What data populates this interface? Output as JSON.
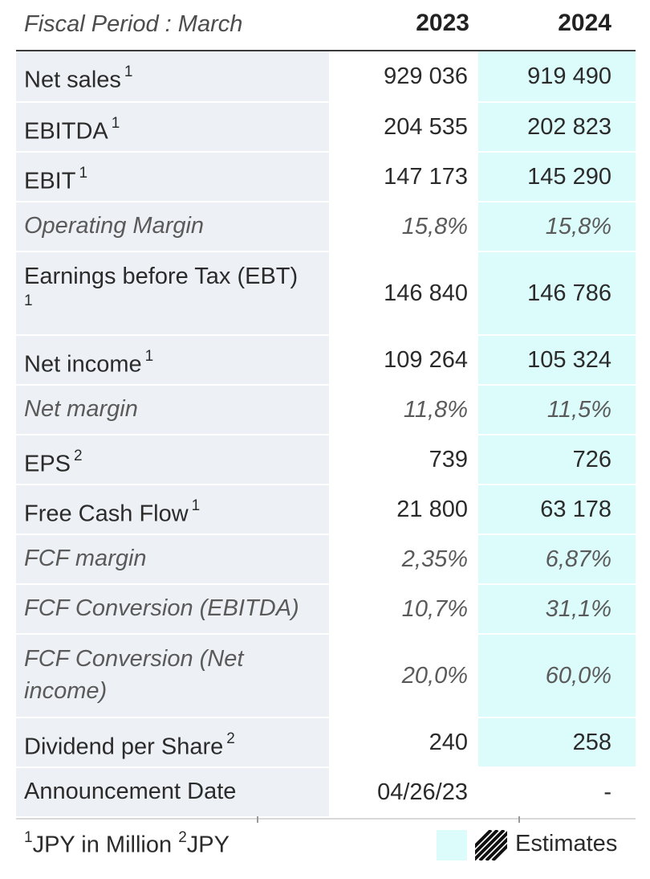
{
  "header": {
    "period_label": "Fiscal Period : March",
    "years": [
      "2023",
      "2024"
    ]
  },
  "rows": [
    {
      "label": "Net sales",
      "note": "1",
      "v2023": "929 036",
      "v2024": "919 490"
    },
    {
      "label": "EBITDA",
      "note": "1",
      "v2023": "204 535",
      "v2024": "202 823"
    },
    {
      "label": "EBIT",
      "note": "1",
      "v2023": "147 173",
      "v2024": "145 290"
    },
    {
      "label": "Operating Margin",
      "note": "",
      "v2023": "15,8%",
      "v2024": "15,8%"
    },
    {
      "label": "Earnings before Tax (EBT)",
      "note": "1",
      "v2023": "146 840",
      "v2024": "146 786"
    },
    {
      "label": "Net income",
      "note": "1",
      "v2023": "109 264",
      "v2024": "105 324"
    },
    {
      "label": "Net margin",
      "note": "",
      "v2023": "11,8%",
      "v2024": "11,5%"
    },
    {
      "label": "EPS",
      "note": "2",
      "v2023": "739",
      "v2024": "726"
    },
    {
      "label": "Free Cash Flow",
      "note": "1",
      "v2023": "21 800",
      "v2024": "63 178"
    },
    {
      "label": "FCF margin",
      "note": "",
      "v2023": "2,35%",
      "v2024": "6,87%"
    },
    {
      "label": "FCF Conversion (EBITDA)",
      "note": "",
      "v2023": "10,7%",
      "v2024": "31,1%"
    },
    {
      "label": "FCF Conversion (Net income)",
      "note": "",
      "v2023": "20,0%",
      "v2024": "60,0%"
    },
    {
      "label": "Dividend per Share",
      "note": "2",
      "v2023": "240",
      "v2024": "258"
    },
    {
      "label": "Announcement Date",
      "note": "",
      "v2023": "04/26/23",
      "v2024": "-"
    }
  ],
  "footer": {
    "note1_mark": "1",
    "note1_text": "JPY in Million",
    "note2_mark": "2",
    "note2_text": "JPY",
    "legend_label": "Estimates"
  },
  "colors": {
    "label_bg": "#edf1f5",
    "estimate_bg": "#dcfbfb"
  }
}
